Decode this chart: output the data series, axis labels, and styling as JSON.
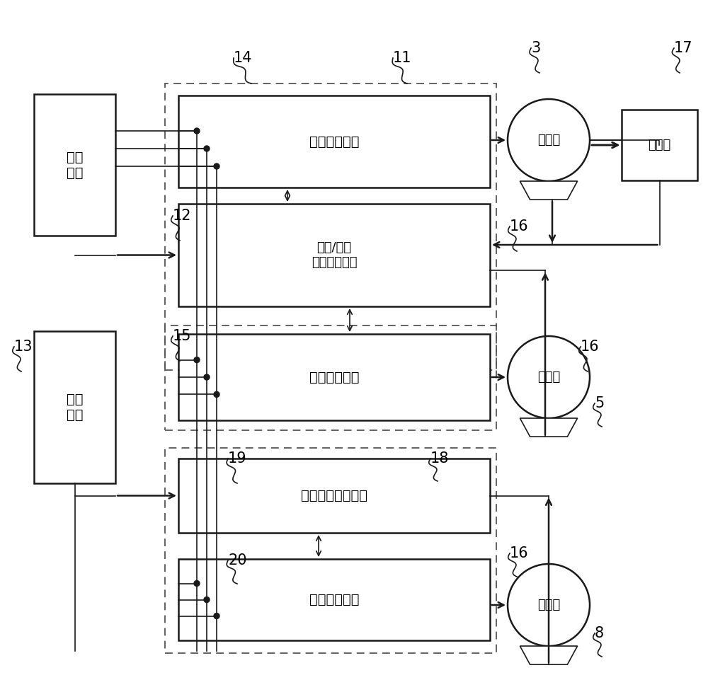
{
  "bg": "#ffffff",
  "lc": "#1a1a1a",
  "figsize": [
    10.0,
    9.61
  ],
  "dpi": 100,
  "labels": {
    "sanxiang": "三相\n电源",
    "input": "输入\n装置",
    "traction_inv": "曳引用逆变器",
    "ctrl": "曳引/横行\n逆变器控制部",
    "traverse_inv": "横行用逆变器",
    "travel_ctrl": "行进逆变器控制部",
    "travel_inv": "行进用逆变器",
    "motor": "电动机",
    "encoder": "编码器"
  },
  "refs": {
    "n3": "3",
    "n5": "5",
    "n8": "8",
    "n11": "11",
    "n12": "12",
    "n13": "13",
    "n14": "14",
    "n15": "15",
    "n16": "16",
    "n17": "17",
    "n18": "18",
    "n19": "19",
    "n20": "20"
  }
}
